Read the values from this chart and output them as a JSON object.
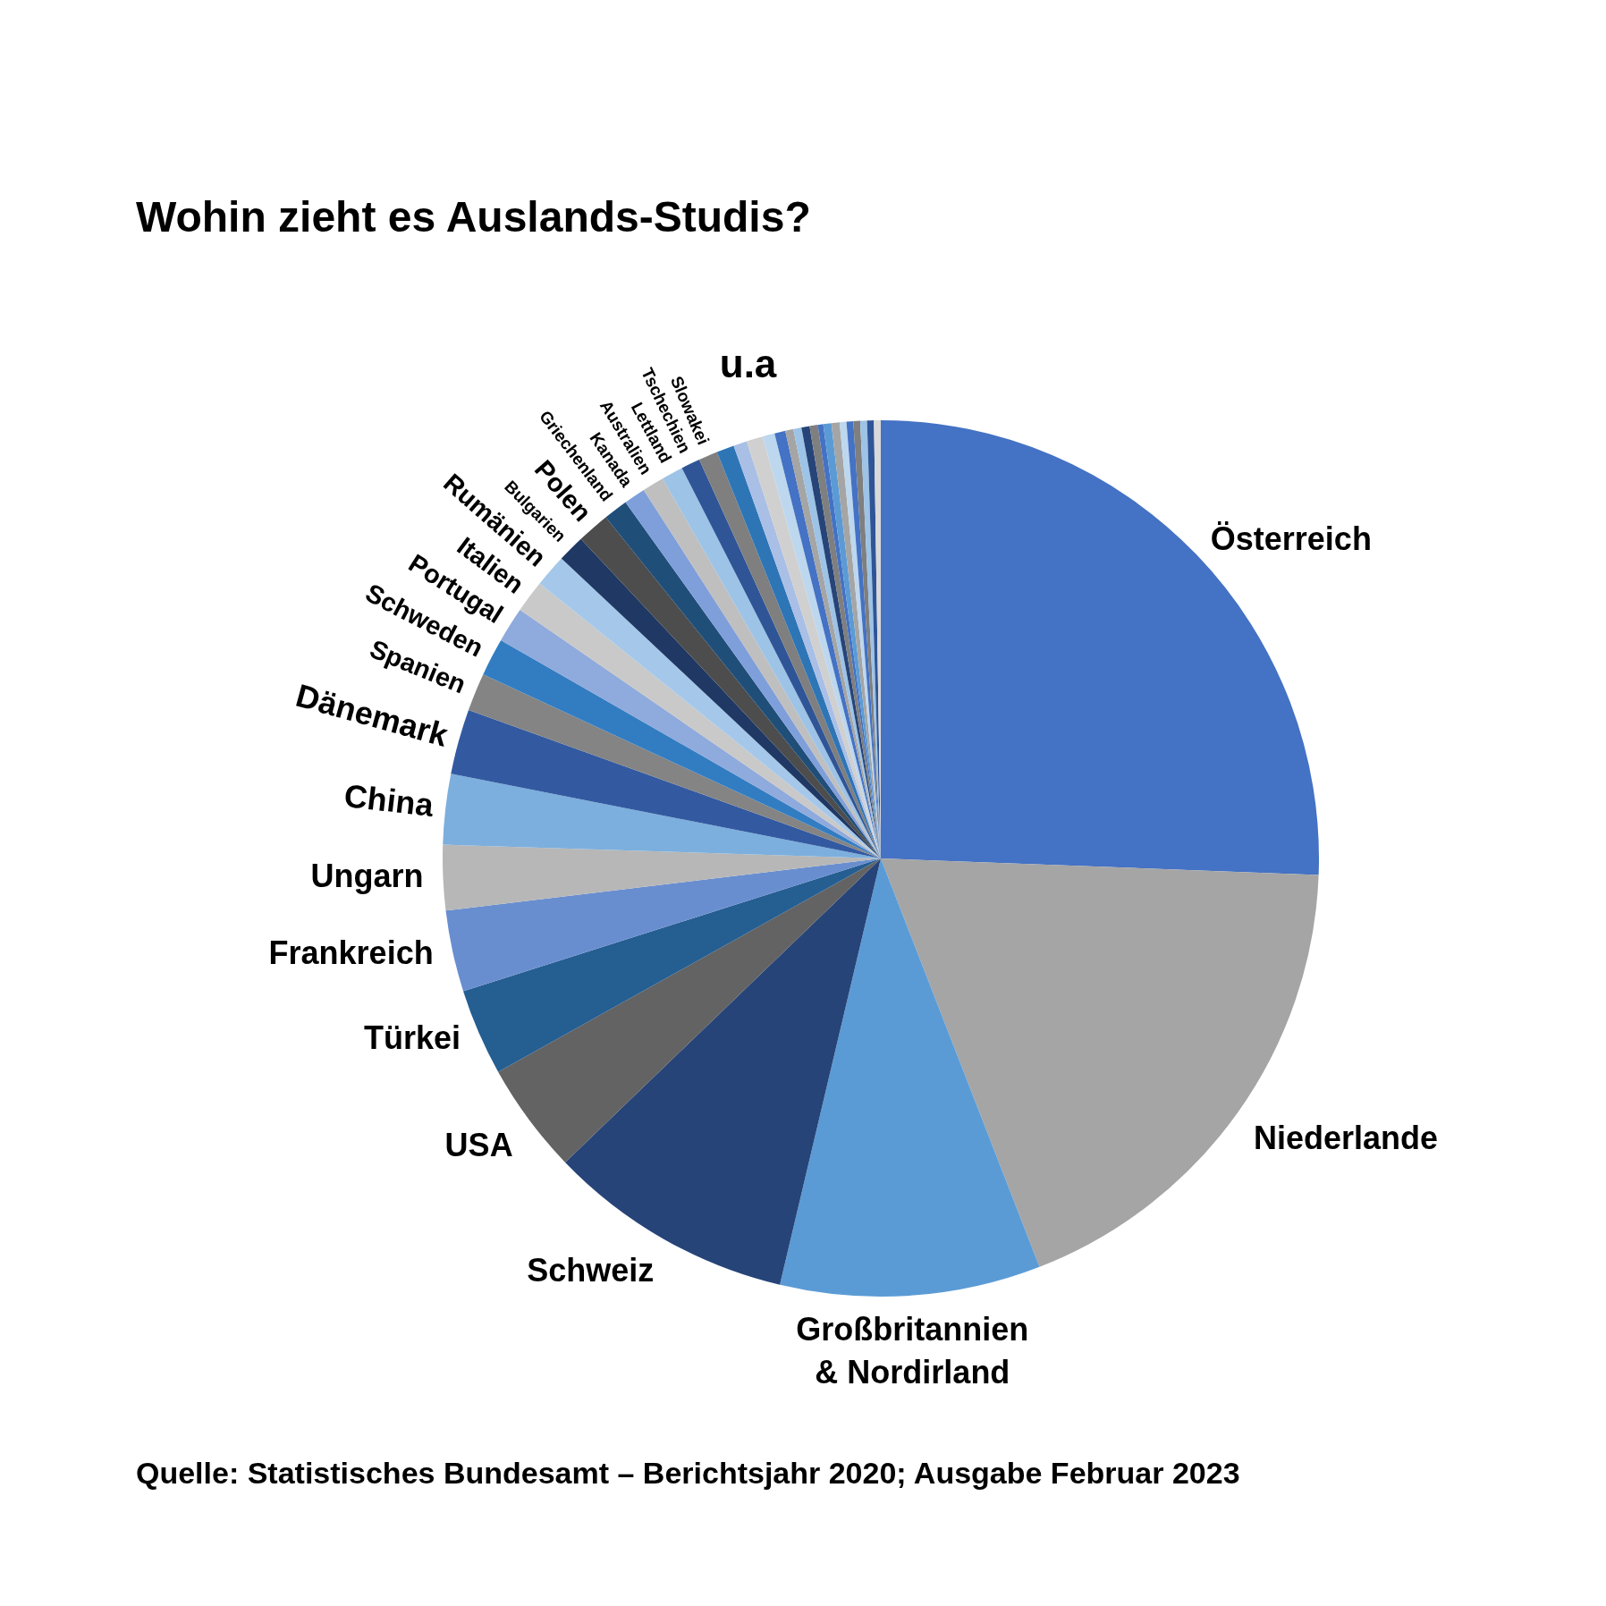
{
  "chart_data": {
    "type": "pie",
    "title": "Wohin zieht es Auslands-Studis?",
    "categories": [
      "Österreich",
      "Niederlande",
      "Großbritannien & Nordirland",
      "Schweiz",
      "USA",
      "Türkei",
      "Frankreich",
      "Ungarn",
      "China",
      "Dänemark",
      "Spanien",
      "Schweden",
      "Portugal",
      "Italien",
      "Rumänien",
      "Bulgarien",
      "Polen",
      "Griechenland",
      "Kanada",
      "Australien",
      "Lettland",
      "Tschechien",
      "Slowakei",
      null,
      null,
      null,
      null,
      null,
      null,
      null,
      null,
      null,
      null,
      null,
      null,
      null,
      null,
      null,
      null,
      null,
      null
    ],
    "values": [
      25.6,
      18.5,
      9.6,
      9.1,
      4.1,
      3.2,
      3.0,
      2.4,
      2.6,
      2.4,
      1.4,
      1.4,
      1.3,
      1.2,
      1.2,
      1.0,
      1.2,
      0.9,
      0.8,
      0.8,
      0.8,
      0.7,
      0.7,
      0.65,
      0.5,
      0.6,
      0.45,
      0.4,
      0.3,
      0.3,
      0.3,
      0.3,
      0.2,
      0.3,
      0.3,
      0.25,
      0.25,
      0.25,
      0.25,
      0.25,
      0.25
    ],
    "colors": [
      "#4472c4",
      "#a5a5a5",
      "#5b9bd5",
      "#264478",
      "#636363",
      "#255e91",
      "#698ed0",
      "#b7b7b7",
      "#7cafdd",
      "#335aa1",
      "#848484",
      "#327dc2",
      "#8faadc",
      "#c9c9c9",
      "#a5c8ea",
      "#1f3864",
      "#4d4d4d",
      "#1f4e79",
      "#7f9fdb",
      "#bfbfbf",
      "#9dc3e6",
      "#2f5597",
      "#7f7f7f",
      "#2e75b6",
      "#a9bfe6",
      "#d0d0d0",
      "#bdd7ee",
      "#4472c4",
      "#a5a5a5",
      "#9dc3e6",
      "#264478",
      "#7f7f7f",
      "#4472c4",
      "#5b9bd5",
      "#a5a5a5",
      "#bdd7ee",
      "#4472c4",
      "#7f7f7f",
      "#9dc3e6",
      "#2f5597",
      "#d9d9d9"
    ],
    "legend": false,
    "annotations": [
      "u.a",
      "Quelle: Statistisches Bundesamt – Berichtsjahr 2020; Ausgabe Februar 2023"
    ]
  }
}
